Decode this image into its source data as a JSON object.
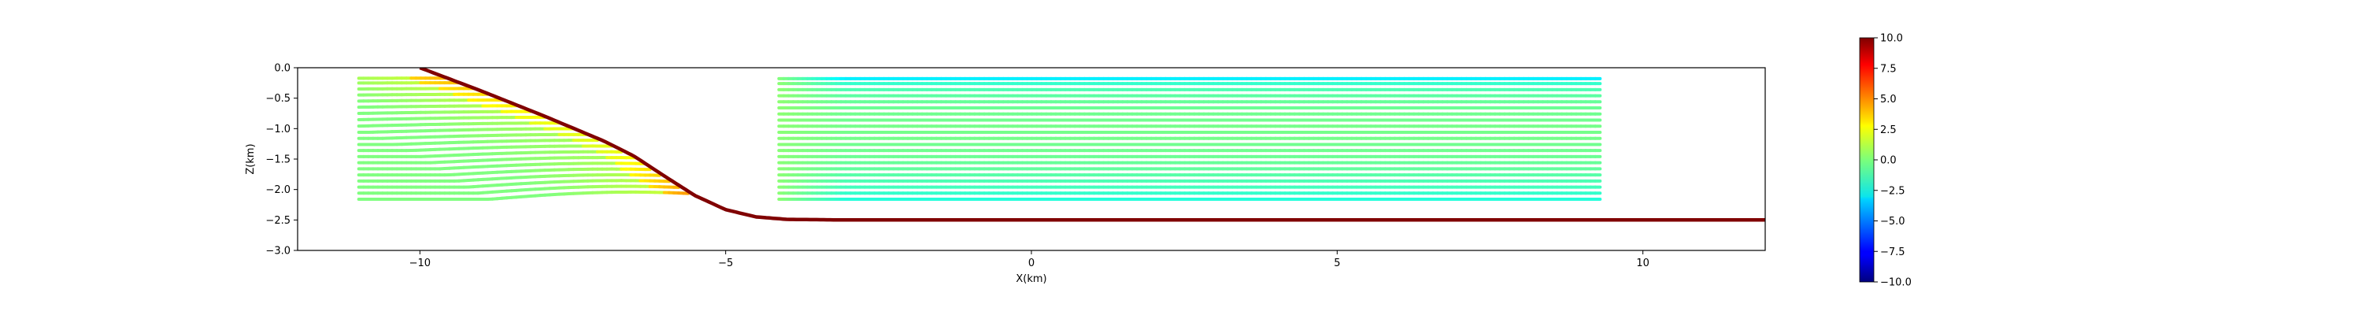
{
  "chart_data": {
    "type": "scatter",
    "xlabel": "X(km)",
    "ylabel": "Z(km)",
    "xlim": [
      -12,
      12
    ],
    "ylim": [
      -3.0,
      0.0
    ],
    "xticks": [
      "−10",
      "−5",
      "0",
      "5",
      "10"
    ],
    "xtick_values": [
      -10,
      -5,
      0,
      5,
      10
    ],
    "yticks": [
      "0.0",
      "−0.5",
      "−1.0",
      "−1.5",
      "−2.0",
      "−2.5",
      "−3.0"
    ],
    "ytick_values": [
      0.0,
      -0.5,
      -1.0,
      -1.5,
      -2.0,
      -2.5,
      -3.0
    ],
    "grid": false,
    "colormap": "jet",
    "colorbar": {
      "range": [
        -10.0,
        10.0
      ],
      "ticks": [
        "10.0",
        "7.5",
        "5.0",
        "2.5",
        "0.0",
        "−2.5",
        "−5.0",
        "−7.5",
        "−10.0"
      ],
      "tick_values": [
        10.0,
        7.5,
        5.0,
        2.5,
        0.0,
        -2.5,
        -5.0,
        -7.5,
        -10.0
      ]
    },
    "fault_line": {
      "color": "#800000",
      "points": [
        [
          -10.0,
          0.0
        ],
        [
          -9.0,
          -0.38
        ],
        [
          -8.0,
          -0.78
        ],
        [
          -7.0,
          -1.2
        ],
        [
          -6.5,
          -1.45
        ],
        [
          -6.0,
          -1.78
        ],
        [
          -5.5,
          -2.1
        ],
        [
          -5.0,
          -2.33
        ],
        [
          -4.5,
          -2.45
        ],
        [
          -4.0,
          -2.49
        ],
        [
          -3.0,
          -2.5
        ],
        [
          12.0,
          -2.5
        ]
      ]
    },
    "horizons": [
      {
        "z": -0.18,
        "x_start": -11.0,
        "x_end": 9.3,
        "v_left": 0.0,
        "v_peak": 4.5,
        "v_right": -2.8
      },
      {
        "z": -0.26,
        "x_start": -11.0,
        "x_end": 9.3,
        "v_left": 0.0,
        "v_peak": 4.3,
        "v_right": -1.5
      },
      {
        "z": -0.36,
        "x_start": -11.0,
        "x_end": 9.3,
        "v_left": 0.0,
        "v_peak": 4.0,
        "v_right": -1.0
      },
      {
        "z": -0.46,
        "x_start": -11.0,
        "x_end": 9.3,
        "v_left": 0.0,
        "v_peak": 3.7,
        "v_right": -0.7
      },
      {
        "z": -0.56,
        "x_start": -11.0,
        "x_end": 9.3,
        "v_left": 0.0,
        "v_peak": 3.5,
        "v_right": -0.5
      },
      {
        "z": -0.66,
        "x_start": -11.0,
        "x_end": 9.3,
        "v_left": 0.0,
        "v_peak": 3.2,
        "v_right": -0.4
      },
      {
        "z": -0.76,
        "x_start": -11.0,
        "x_end": 9.3,
        "v_left": 0.0,
        "v_peak": 3.0,
        "v_right": -0.3
      },
      {
        "z": -0.86,
        "x_start": -11.0,
        "x_end": 9.3,
        "v_left": 0.0,
        "v_peak": 2.8,
        "v_right": -0.3
      },
      {
        "z": -0.96,
        "x_start": -11.0,
        "x_end": 9.3,
        "v_left": 0.0,
        "v_peak": 2.6,
        "v_right": -0.2
      },
      {
        "z": -1.06,
        "x_start": -11.0,
        "x_end": 9.3,
        "v_left": 0.0,
        "v_peak": 2.5,
        "v_right": -0.2
      },
      {
        "z": -1.16,
        "x_start": -11.0,
        "x_end": 9.3,
        "v_left": 0.0,
        "v_peak": 2.4,
        "v_right": -0.2
      },
      {
        "z": -1.26,
        "x_start": -11.0,
        "x_end": 9.3,
        "v_left": 0.0,
        "v_peak": 2.3,
        "v_right": -0.3
      },
      {
        "z": -1.36,
        "x_start": -11.0,
        "x_end": 9.3,
        "v_left": 0.0,
        "v_peak": 2.3,
        "v_right": -0.3
      },
      {
        "z": -1.46,
        "x_start": -11.0,
        "x_end": 9.3,
        "v_left": 0.0,
        "v_peak": 2.4,
        "v_right": -0.4
      },
      {
        "z": -1.56,
        "x_start": -11.0,
        "x_end": 9.3,
        "v_left": 0.0,
        "v_peak": 2.6,
        "v_right": -0.5
      },
      {
        "z": -1.66,
        "x_start": -11.0,
        "x_end": 9.3,
        "v_left": 0.0,
        "v_peak": 2.9,
        "v_right": -0.6
      },
      {
        "z": -1.76,
        "x_start": -11.0,
        "x_end": 9.3,
        "v_left": 0.0,
        "v_peak": 3.2,
        "v_right": -0.8
      },
      {
        "z": -1.86,
        "x_start": -11.0,
        "x_end": 9.3,
        "v_left": 0.0,
        "v_peak": 3.5,
        "v_right": -1.0
      },
      {
        "z": -1.96,
        "x_start": -11.0,
        "x_end": 9.3,
        "v_left": 0.0,
        "v_peak": 3.8,
        "v_right": -1.2
      },
      {
        "z": -2.06,
        "x_start": -11.0,
        "x_end": 9.3,
        "v_left": 0.0,
        "v_peak": 4.2,
        "v_right": -1.5
      },
      {
        "z": -2.16,
        "x_start": -11.0,
        "x_end": 9.3,
        "v_left": 0.0,
        "v_peak": 4.6,
        "v_right": -1.8
      }
    ]
  }
}
